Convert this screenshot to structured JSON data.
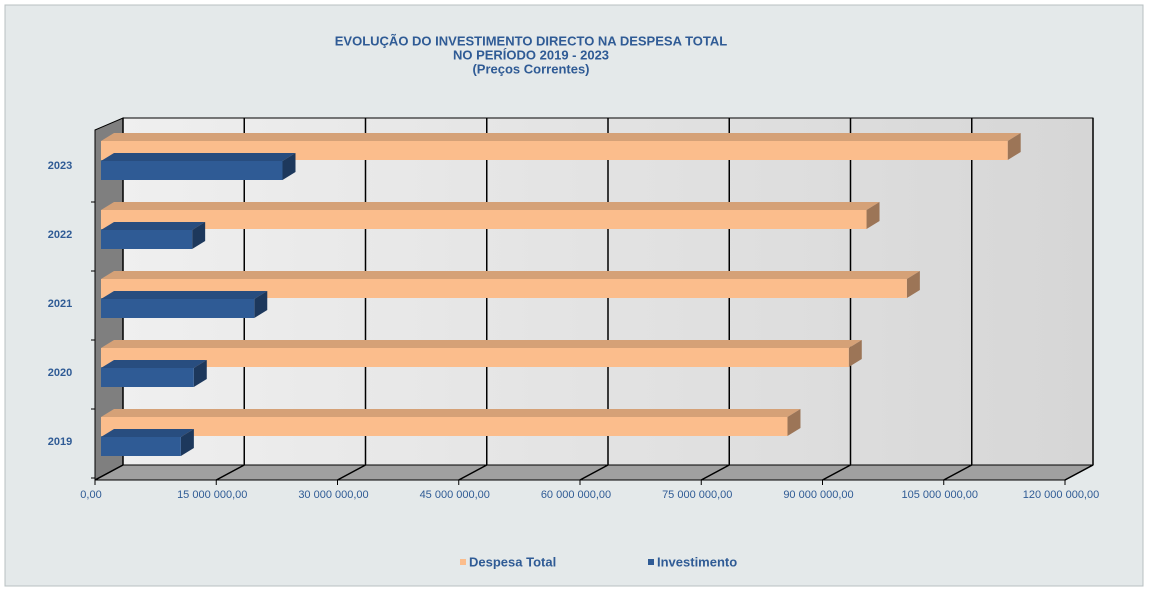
{
  "chart_data": {
    "type": "bar3d_horizontal",
    "title_lines": [
      "EVOLUÇÃO  DO  INVESTIMENTO  DIRECTO  NA  DESPESA  TOTAL",
      "NO PERÍODO  2019 - 2023",
      "(Preços Correntes)"
    ],
    "categories": [
      "2019",
      "2020",
      "2021",
      "2022",
      "2023"
    ],
    "series": [
      {
        "name": "Despesa Total",
        "color": "#fbbd8c",
        "values": [
          85100000,
          92700000,
          99900000,
          94900000,
          112400000
        ]
      },
      {
        "name": "Investimento",
        "color": "#2f5b95",
        "values": [
          9900000,
          11500000,
          19000000,
          11300000,
          22500000
        ]
      }
    ],
    "xlim": [
      0,
      120000000
    ],
    "xticks": [
      {
        "value": 0,
        "label": "0,00"
      },
      {
        "value": 15000000,
        "label": "15 000 000,00"
      },
      {
        "value": 30000000,
        "label": "30 000 000,00"
      },
      {
        "value": 45000000,
        "label": "45 000 000,00"
      },
      {
        "value": 60000000,
        "label": "60 000 000,00"
      },
      {
        "value": 75000000,
        "label": "75 000 000,00"
      },
      {
        "value": 90000000,
        "label": "90 000 000,00"
      },
      {
        "value": 105000000,
        "label": "105 000 000,00"
      },
      {
        "value": 120000000,
        "label": "120 000 000,00"
      }
    ],
    "grid": true
  }
}
